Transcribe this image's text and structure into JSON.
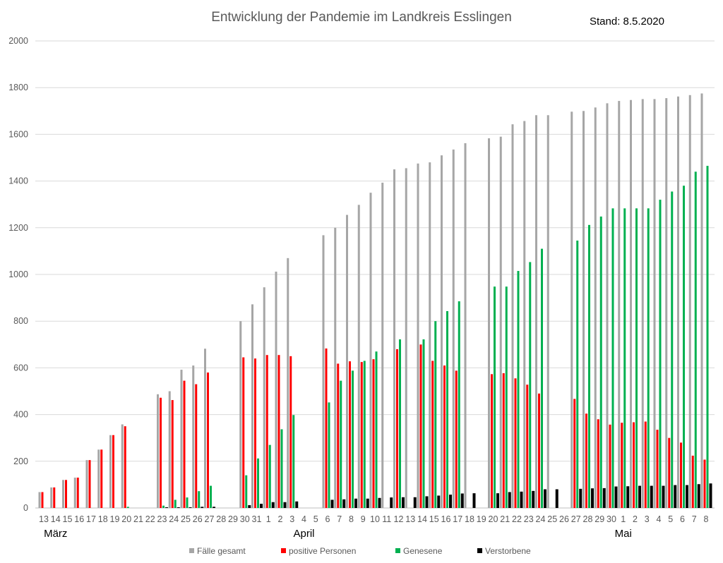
{
  "chart_data": {
    "type": "bar",
    "title": "Entwicklung der Pandemie im Landkreis Esslingen",
    "annotation": "Stand: 8.5.2020",
    "xlabel": "",
    "ylabel": "",
    "ylim": [
      0,
      2000
    ],
    "yticks": [
      0,
      200,
      400,
      600,
      800,
      1000,
      1200,
      1400,
      1600,
      1800,
      2000
    ],
    "grid": true,
    "legend_position": "bottom",
    "month_labels": [
      {
        "label": "März",
        "at_index": 1
      },
      {
        "label": "April",
        "at_index": 22
      },
      {
        "label": "Mai",
        "at_index": 49
      }
    ],
    "categories": [
      "13",
      "14",
      "15",
      "16",
      "17",
      "18",
      "19",
      "20",
      "21",
      "22",
      "23",
      "24",
      "25",
      "26",
      "27",
      "28",
      "29",
      "30",
      "31",
      "1",
      "2",
      "3",
      "4",
      "5",
      "6",
      "7",
      "8",
      "9",
      "10",
      "11",
      "12",
      "13",
      "14",
      "15",
      "16",
      "17",
      "18",
      "19",
      "20",
      "21",
      "22",
      "23",
      "24",
      "25",
      "26",
      "27",
      "28",
      "29",
      "30",
      "1",
      "2",
      "3",
      "4",
      "5",
      "6",
      "7",
      "8"
    ],
    "series": [
      {
        "name": "Fälle gesamt",
        "color": "#a6a6a6",
        "values": [
          68,
          88,
          120,
          130,
          205,
          250,
          312,
          358,
          null,
          null,
          487,
          500,
          592,
          610,
          682,
          null,
          null,
          800,
          872,
          945,
          1012,
          1070,
          null,
          null,
          1168,
          1200,
          1255,
          1298,
          1350,
          1393,
          1450,
          1455,
          1475,
          1480,
          1510,
          1535,
          1562,
          null,
          1583,
          1590,
          1643,
          1657,
          1682,
          1682,
          null,
          1697,
          1700,
          1715,
          1733,
          1743,
          1747,
          1751,
          1751,
          1755,
          1762,
          1768,
          1775
        ]
      },
      {
        "name": "positive Personen",
        "color": "#ff0000",
        "values": [
          68,
          88,
          120,
          130,
          205,
          250,
          312,
          350,
          null,
          null,
          472,
          462,
          545,
          530,
          580,
          null,
          null,
          645,
          640,
          655,
          655,
          650,
          null,
          null,
          683,
          618,
          628,
          625,
          637,
          null,
          680,
          null,
          700,
          630,
          610,
          588,
          null,
          null,
          573,
          577,
          555,
          528,
          490,
          null,
          null,
          467,
          404,
          380,
          357,
          365,
          367,
          370,
          335,
          300,
          280,
          224,
          207
        ]
      },
      {
        "name": "Genesene",
        "color": "#00b050",
        "values": [
          0,
          0,
          0,
          0,
          0,
          0,
          0,
          5,
          null,
          null,
          10,
          35,
          45,
          72,
          95,
          null,
          null,
          140,
          212,
          270,
          337,
          398,
          null,
          null,
          452,
          545,
          588,
          630,
          670,
          null,
          722,
          null,
          722,
          800,
          843,
          885,
          null,
          null,
          948,
          948,
          1015,
          1053,
          1110,
          null,
          null,
          1145,
          1212,
          1248,
          1283,
          1283,
          1283,
          1283,
          1320,
          1355,
          1380,
          1440,
          1465
        ]
      },
      {
        "name": "Verstorbene",
        "color": "#000000",
        "values": [
          0,
          0,
          0,
          0,
          0,
          0,
          0,
          0,
          null,
          null,
          3,
          3,
          3,
          5,
          5,
          null,
          null,
          12,
          18,
          25,
          25,
          28,
          null,
          null,
          35,
          37,
          40,
          40,
          43,
          45,
          46,
          46,
          50,
          53,
          57,
          62,
          63,
          null,
          63,
          68,
          70,
          73,
          80,
          80,
          null,
          82,
          84,
          85,
          92,
          93,
          95,
          95,
          95,
          98,
          98,
          102,
          105
        ]
      }
    ]
  }
}
